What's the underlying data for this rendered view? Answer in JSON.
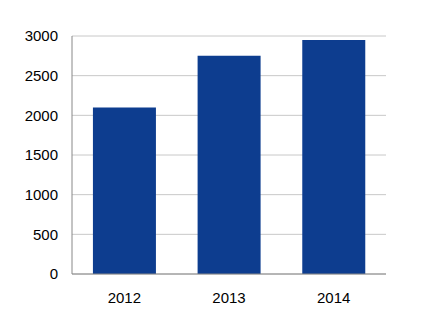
{
  "chart_data": {
    "type": "bar",
    "categories": [
      "2012",
      "2013",
      "2014"
    ],
    "values": [
      2100,
      2750,
      2950
    ],
    "color": "#0d3d8f",
    "ylim": [
      0,
      3000
    ],
    "yticks": [
      0,
      500,
      1000,
      1500,
      2000,
      2500,
      3000
    ],
    "grid": true
  }
}
